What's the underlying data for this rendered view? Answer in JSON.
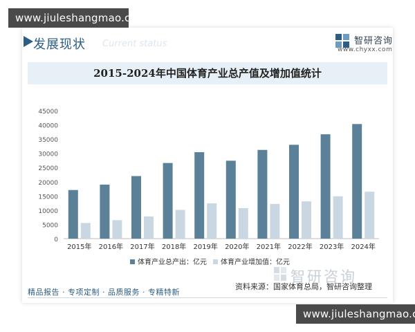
{
  "watermark": {
    "site": "www.jiuleshangmao.com"
  },
  "header": {
    "section_title": "发展现状",
    "section_title_ghost": "Current status",
    "logo_name": "智研咨询",
    "logo_url": "www.chyxx.com"
  },
  "chart_data": {
    "type": "bar",
    "title": "2015-2024年中国体育产业总产值及增加值统计",
    "categories": [
      "2015年",
      "2016年",
      "2017年",
      "2018年",
      "2019年",
      "2020年",
      "2021年",
      "2022年",
      "2023年",
      "2024年"
    ],
    "series": [
      {
        "name": "体育产业总产出：亿元",
        "color": "#5b8199",
        "values": [
          17100,
          19000,
          22000,
          26600,
          30400,
          27400,
          31200,
          33000,
          36700,
          40300
        ]
      },
      {
        "name": "体育产业增加值：亿元",
        "color": "#c9d7e2",
        "values": [
          5500,
          6500,
          7800,
          10100,
          12400,
          10700,
          12200,
          13100,
          14900,
          16500
        ]
      }
    ],
    "yticks": [
      "0",
      "5000",
      "10000",
      "15000",
      "20000",
      "25000",
      "30000",
      "35000",
      "40000",
      "45000"
    ],
    "ylim": [
      0,
      45000
    ],
    "legend_position": "bottom",
    "grid": false
  },
  "footer": {
    "tagline": "精品报告 · 专项定制 · 品质服务 · 专精特新",
    "source": "资料来源：国家体育总局，智研咨询整理",
    "brand": "智研咨询"
  }
}
